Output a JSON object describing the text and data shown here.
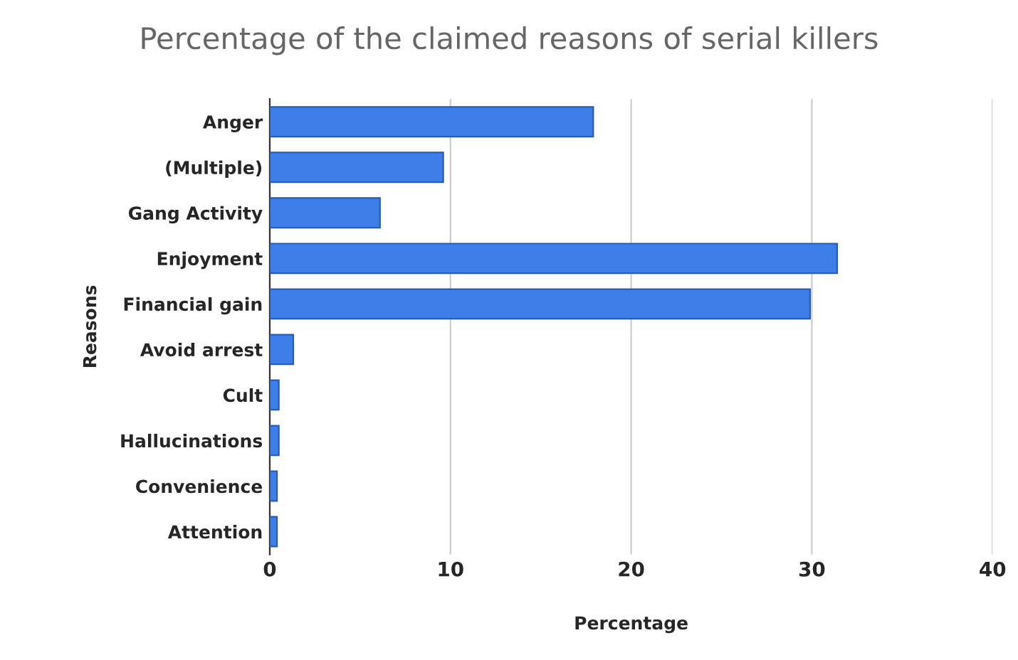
{
  "chart_data": {
    "type": "bar",
    "orientation": "horizontal",
    "title": "Percentage of the claimed reasons of serial killers",
    "xlabel": "Percentage",
    "ylabel": "Reasons",
    "categories": [
      "Anger",
      "(Multiple)",
      "Gang Activity",
      "Enjoyment",
      "Financial gain",
      "Avoid arrest",
      "Cult",
      "Hallucinations",
      "Convenience",
      "Attention"
    ],
    "values": [
      17.9,
      9.6,
      6.1,
      31.4,
      29.9,
      1.3,
      0.5,
      0.5,
      0.4,
      0.4
    ],
    "color": "#3d7ee8",
    "xlim": [
      0,
      40
    ],
    "xticks": [
      0,
      10,
      20,
      30,
      40
    ],
    "grid": "x"
  }
}
